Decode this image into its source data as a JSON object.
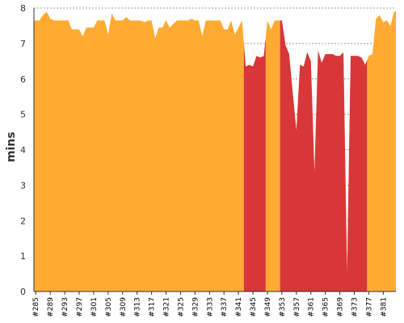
{
  "chart_data": {
    "type": "area",
    "title": "",
    "xlabel": "",
    "ylabel": "mins",
    "ylim": [
      0,
      8
    ],
    "yticks": [
      0,
      1,
      2,
      3,
      4,
      5,
      6,
      7,
      8
    ],
    "grid": "horizontal dashed",
    "legend": "none",
    "x_tick_labels": [
      "#285",
      "#289",
      "#293",
      "#297",
      "#301",
      "#305",
      "#309",
      "#313",
      "#317",
      "#321",
      "#325",
      "#329",
      "#333",
      "#337",
      "#341",
      "#345",
      "#349",
      "#353",
      "#357",
      "#361",
      "#365",
      "#369",
      "#373",
      "#377",
      "#381"
    ],
    "x_range": [
      285,
      384
    ],
    "x": [
      285,
      286,
      287,
      288,
      289,
      290,
      291,
      292,
      293,
      294,
      295,
      296,
      297,
      298,
      299,
      300,
      301,
      302,
      303,
      304,
      305,
      306,
      307,
      308,
      309,
      310,
      311,
      312,
      313,
      314,
      315,
      316,
      317,
      318,
      319,
      320,
      321,
      322,
      323,
      324,
      325,
      326,
      327,
      328,
      329,
      330,
      331,
      332,
      333,
      334,
      335,
      336,
      337,
      338,
      339,
      340,
      341,
      342,
      343,
      344,
      345,
      346,
      347,
      348,
      349,
      350,
      351,
      352,
      353,
      354,
      355,
      356,
      357,
      358,
      359,
      360,
      361,
      362,
      363,
      364,
      365,
      366,
      367,
      368,
      369,
      370,
      371,
      372,
      373,
      374,
      375,
      376,
      377,
      378,
      379,
      380,
      381,
      382,
      383,
      384
    ],
    "values": [
      7.65,
      7.65,
      7.8,
      7.9,
      7.7,
      7.65,
      7.65,
      7.65,
      7.65,
      7.65,
      7.4,
      7.4,
      7.4,
      7.2,
      7.45,
      7.45,
      7.45,
      7.65,
      7.65,
      7.65,
      7.25,
      7.85,
      7.65,
      7.65,
      7.65,
      7.75,
      7.65,
      7.65,
      7.65,
      7.65,
      7.6,
      7.65,
      7.65,
      7.15,
      7.45,
      7.45,
      7.65,
      7.45,
      7.55,
      7.65,
      7.65,
      7.65,
      7.65,
      7.7,
      7.65,
      7.65,
      7.2,
      7.65,
      7.65,
      7.65,
      7.65,
      7.65,
      7.4,
      7.4,
      7.65,
      7.25,
      7.45,
      7.65,
      6.35,
      6.4,
      6.35,
      6.65,
      6.6,
      6.65,
      7.65,
      7.4,
      7.65,
      7.65,
      7.65,
      6.95,
      6.7,
      5.6,
      4.55,
      6.4,
      6.35,
      6.75,
      6.5,
      3.35,
      6.8,
      6.45,
      6.7,
      6.7,
      6.7,
      6.65,
      6.65,
      6.75,
      0.5,
      6.65,
      6.65,
      6.65,
      6.6,
      6.4,
      6.65,
      6.7,
      7.7,
      7.8,
      7.6,
      7.65,
      7.5,
      7.9
    ],
    "series": [
      {
        "status": "success",
        "color": "#ffaa33"
      },
      {
        "status": "failure",
        "color": "#d9363a"
      }
    ],
    "failed_ranges": [
      [
        342.5,
        348.5
      ],
      [
        352.5,
        376.5
      ]
    ]
  }
}
